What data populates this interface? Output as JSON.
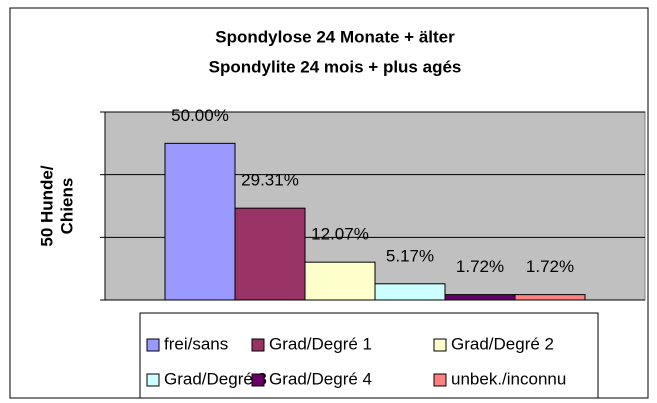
{
  "chart_data": {
    "type": "bar",
    "title": [
      "Spondylose 24 Monate + älter",
      "Spondylite 24 mois + plus agés"
    ],
    "y_label": [
      "50 Hunde/",
      "Chiens"
    ],
    "categories": [
      null
    ],
    "series": [
      {
        "name": "frei/sans",
        "color": "#9999ff",
        "values": [
          50
        ],
        "value_labels": [
          "50.00%"
        ]
      },
      {
        "name": "Grad/Degré 1",
        "color": "#993366",
        "values": [
          29.31
        ],
        "value_labels": [
          "29.31%"
        ]
      },
      {
        "name": "Grad/Degré 2",
        "color": "#ffffcc",
        "values": [
          12.07
        ],
        "value_labels": [
          "12.07%"
        ]
      },
      {
        "name": "Grad/Degré 3",
        "color": "#ccffff",
        "values": [
          5.17
        ],
        "value_labels": [
          "5.17%"
        ]
      },
      {
        "name": "Grad/Degré 4",
        "color": "#660066",
        "values": [
          1.72
        ],
        "value_labels": [
          "1.72%"
        ]
      },
      {
        "name": "unbek./inconnu",
        "color": "#ff8080",
        "values": [
          1.72
        ],
        "value_labels": [
          "1.72%"
        ]
      }
    ],
    "ylim": [
      0,
      60
    ],
    "yticks": [
      0,
      20,
      40,
      60
    ],
    "grid": true,
    "plot_background": "#c0c0c0"
  }
}
